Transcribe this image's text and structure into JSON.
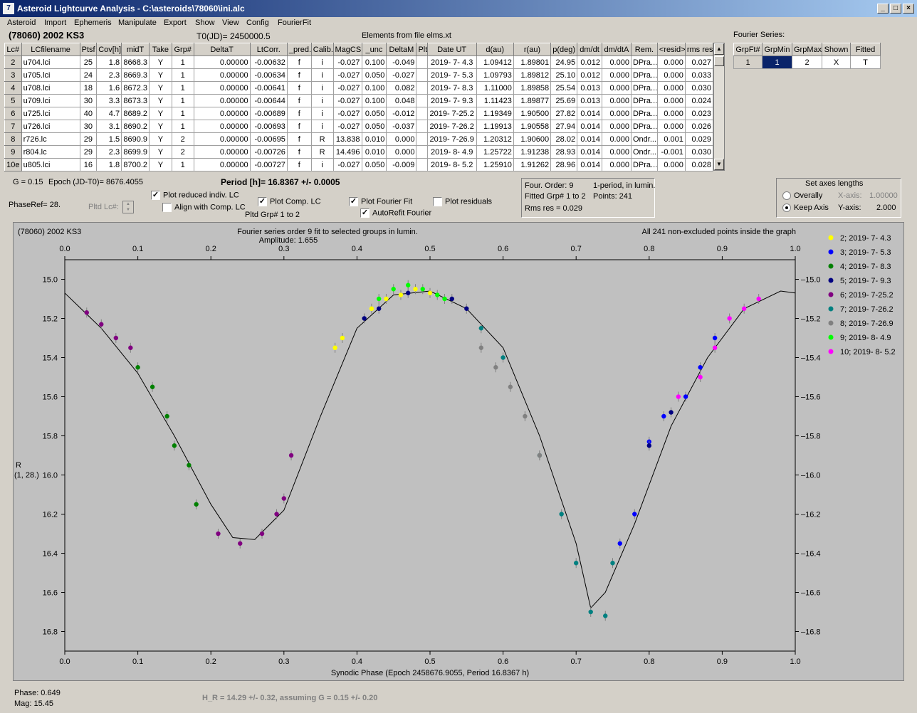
{
  "window": {
    "title": "Asteroid Lightcurve Analysis - C:\\asteroids\\78060\\ini.alc"
  },
  "menu": [
    "Asteroid",
    "Import",
    "Ephemeris",
    "Manipulate",
    "Export",
    "Show",
    "View",
    "Config",
    "FourierFit"
  ],
  "header": {
    "object": "(78060) 2002 KS3",
    "t0": "T0(JD)= 2450000.5",
    "elements": "Elements from file elms.xt"
  },
  "table": {
    "columns": [
      "Lc#",
      "LCfilename",
      "Ptsf",
      "Cov[h]",
      "midT",
      "Take",
      "Grp#",
      "DeltaT",
      "LtCorr.",
      "_pred.",
      "Calib.",
      "MagCS",
      "_unc",
      "DeltaM",
      "Plt",
      "Date UT",
      "d(au)",
      "r(au)",
      "p(deg)",
      "dm/dt",
      "dm/dtA",
      "Rem.",
      "<resid>",
      "rms res"
    ],
    "rows": [
      [
        "2",
        "u704.lci",
        "25",
        "1.8",
        "8668.3",
        "Y",
        "1",
        "0.00000",
        "-0.00632",
        "f",
        "i",
        "-0.027",
        "0.100",
        "-0.049",
        "",
        "2019- 7- 4.3",
        "1.09412",
        "1.89801",
        "24.95",
        "0.012",
        "0.000",
        "DPra...",
        "0.000",
        "0.027"
      ],
      [
        "3",
        "u705.lci",
        "24",
        "2.3",
        "8669.3",
        "Y",
        "1",
        "0.00000",
        "-0.00634",
        "f",
        "i",
        "-0.027",
        "0.050",
        "-0.027",
        "",
        "2019- 7- 5.3",
        "1.09793",
        "1.89812",
        "25.10",
        "0.012",
        "0.000",
        "DPra...",
        "0.000",
        "0.033"
      ],
      [
        "4",
        "u708.lci",
        "18",
        "1.6",
        "8672.3",
        "Y",
        "1",
        "0.00000",
        "-0.00641",
        "f",
        "i",
        "-0.027",
        "0.100",
        "0.082",
        "",
        "2019- 7- 8.3",
        "1.11000",
        "1.89858",
        "25.54",
        "0.013",
        "0.000",
        "DPra...",
        "0.000",
        "0.030"
      ],
      [
        "5",
        "u709.lci",
        "30",
        "3.3",
        "8673.3",
        "Y",
        "1",
        "0.00000",
        "-0.00644",
        "f",
        "i",
        "-0.027",
        "0.100",
        "0.048",
        "",
        "2019- 7- 9.3",
        "1.11423",
        "1.89877",
        "25.69",
        "0.013",
        "0.000",
        "DPra...",
        "0.000",
        "0.024"
      ],
      [
        "6",
        "u725.lci",
        "40",
        "4.7",
        "8689.2",
        "Y",
        "1",
        "0.00000",
        "-0.00689",
        "f",
        "i",
        "-0.027",
        "0.050",
        "-0.012",
        "",
        "2019- 7-25.2",
        "1.19349",
        "1.90500",
        "27.82",
        "0.014",
        "0.000",
        "DPra...",
        "0.000",
        "0.023"
      ],
      [
        "7",
        "u726.lci",
        "30",
        "3.1",
        "8690.2",
        "Y",
        "1",
        "0.00000",
        "-0.00693",
        "f",
        "i",
        "-0.027",
        "0.050",
        "-0.037",
        "",
        "2019- 7-26.2",
        "1.19913",
        "1.90558",
        "27.94",
        "0.014",
        "0.000",
        "DPra...",
        "0.000",
        "0.026"
      ],
      [
        "8",
        "r726.lc",
        "29",
        "1.5",
        "8690.9",
        "Y",
        "2",
        "0.00000",
        "-0.00695",
        "f",
        "R",
        "13.838",
        "0.010",
        "0.000",
        "",
        "2019- 7-26.9",
        "1.20312",
        "1.90600",
        "28.02",
        "0.014",
        "0.000",
        "Ondr...",
        "0.001",
        "0.029"
      ],
      [
        "9",
        "r804.lc",
        "29",
        "2.3",
        "8699.9",
        "Y",
        "2",
        "0.00000",
        "-0.00726",
        "f",
        "R",
        "14.496",
        "0.010",
        "0.000",
        "",
        "2019- 8- 4.9",
        "1.25722",
        "1.91238",
        "28.93",
        "0.014",
        "0.000",
        "Ondr...",
        "-0.001",
        "0.030"
      ],
      [
        "10e",
        "u805.lci",
        "16",
        "1.8",
        "8700.2",
        "Y",
        "1",
        "0.00000",
        "-0.00727",
        "f",
        "i",
        "-0.027",
        "0.050",
        "-0.009",
        "",
        "2019- 8- 5.2",
        "1.25910",
        "1.91262",
        "28.96",
        "0.014",
        "0.000",
        "DPra...",
        "0.000",
        "0.028"
      ]
    ]
  },
  "fourier_table": {
    "title": "Fourier Series:",
    "columns": [
      "GrpFt#",
      "GrpMin",
      "GrpMax",
      "Shown",
      "Fitted"
    ],
    "row": [
      "1",
      "1",
      "2",
      "X",
      "T"
    ]
  },
  "controls": {
    "g": "G = 0.15",
    "epoch": "Epoch (JD-T0)= 8676.4055",
    "period": "Period [h]= 16.8367 +/- 0.0005",
    "phaseref": "PhaseRef= 28.",
    "pltd_lc": "Pltd Lc#:",
    "plot_reduced": "Plot reduced indiv. LC",
    "align": "Align with Comp. LC",
    "plot_comp": "Plot Comp. LC",
    "pltd_grp": "Pltd Grp#  1   to   2",
    "plot_fourier": "Plot Fourier Fit",
    "autorefit": "AutoRefit Fourier",
    "plot_resid": "Plot residuals"
  },
  "fourinfo": {
    "order": "Four. Order:  9",
    "period_type": "1-period, in lumin.",
    "fitted": "Fitted Grp# 1 to 2",
    "points": "Points: 241",
    "rms": "Rms res      = 0.029"
  },
  "axes": {
    "title": "Set axes lengths",
    "overally": "Overally",
    "keep": "Keep Axis",
    "xaxis_label": "X-axis:",
    "xaxis_val": "1.00000",
    "yaxis_label": "Y-axis:",
    "yaxis_val": "2.000"
  },
  "plot": {
    "obj": "(78060) 2002 KS3",
    "fit_desc": "Fourier series order 9 fit to selected groups in lumin.",
    "amplitude": "Amplitude: 1.655",
    "points_note": "All 241 non-excluded points inside the graph",
    "ylabel1": "R",
    "ylabel2": "(1, 28.)",
    "xlabel": "Synodic Phase (Epoch 2458676.9055, Period 16.8367 h)"
  },
  "status": {
    "phase": "Phase:  0.649",
    "mag": "Mag:     15.45",
    "hr": "H_R = 14.29 +/- 0.32, assuming G = 0.15 +/- 0.20"
  },
  "colors": {
    "accent": "#0a246a",
    "plot_bg": "#c0c0c0"
  },
  "chart_data": {
    "type": "scatter",
    "xlim": [
      0,
      1
    ],
    "ylim": [
      16.9,
      14.9
    ],
    "y_inverted": true,
    "xticks": [
      "0.0",
      "0.1",
      "0.2",
      "0.3",
      "0.4",
      "0.5",
      "0.6",
      "0.7",
      "0.8",
      "0.9",
      "1.0"
    ],
    "yticks": [
      "15.0",
      "15.2",
      "15.4",
      "15.6",
      "15.8",
      "16.0",
      "16.2",
      "16.4",
      "16.6",
      "16.8"
    ],
    "legend": [
      {
        "name": "2; 2019- 7- 4.3",
        "color": "#ffff00"
      },
      {
        "name": "3; 2019- 7- 5.3",
        "color": "#0000ff"
      },
      {
        "name": "4; 2019- 7- 8.3",
        "color": "#008000"
      },
      {
        "name": "5; 2019- 7- 9.3",
        "color": "#000080"
      },
      {
        "name": "6; 2019- 7-25.2",
        "color": "#800080"
      },
      {
        "name": "7; 2019- 7-26.2",
        "color": "#008080"
      },
      {
        "name": "8; 2019- 7-26.9",
        "color": "#808080"
      },
      {
        "name": "9; 2019- 8- 4.9",
        "color": "#00ff00"
      },
      {
        "name": "10; 2019- 8- 5.2",
        "color": "#ff00ff"
      }
    ],
    "fit": [
      [
        0,
        15.07
      ],
      [
        0.05,
        15.25
      ],
      [
        0.1,
        15.48
      ],
      [
        0.15,
        15.8
      ],
      [
        0.2,
        16.15
      ],
      [
        0.23,
        16.32
      ],
      [
        0.26,
        16.33
      ],
      [
        0.3,
        16.18
      ],
      [
        0.35,
        15.7
      ],
      [
        0.4,
        15.25
      ],
      [
        0.45,
        15.08
      ],
      [
        0.5,
        15.06
      ],
      [
        0.55,
        15.15
      ],
      [
        0.6,
        15.35
      ],
      [
        0.65,
        15.8
      ],
      [
        0.7,
        16.35
      ],
      [
        0.72,
        16.68
      ],
      [
        0.74,
        16.6
      ],
      [
        0.78,
        16.25
      ],
      [
        0.83,
        15.75
      ],
      [
        0.88,
        15.4
      ],
      [
        0.93,
        15.15
      ],
      [
        0.98,
        15.06
      ],
      [
        1.0,
        15.07
      ]
    ],
    "series": [
      {
        "name": "2; 2019- 7- 4.3",
        "values": [
          [
            0.38,
            15.3
          ],
          [
            0.37,
            15.35
          ],
          [
            0.42,
            15.15
          ],
          [
            0.44,
            15.1
          ],
          [
            0.46,
            15.08
          ],
          [
            0.48,
            15.05
          ],
          [
            0.5,
            15.07
          ]
        ]
      },
      {
        "name": "3; 2019- 7- 5.3",
        "values": [
          [
            0.8,
            15.83
          ],
          [
            0.82,
            15.7
          ],
          [
            0.85,
            15.6
          ],
          [
            0.87,
            15.45
          ],
          [
            0.89,
            15.3
          ],
          [
            0.78,
            16.2
          ],
          [
            0.76,
            16.35
          ]
        ]
      },
      {
        "name": "4; 2019- 7- 8.3",
        "values": [
          [
            0.1,
            15.45
          ],
          [
            0.12,
            15.55
          ],
          [
            0.14,
            15.7
          ],
          [
            0.15,
            15.85
          ],
          [
            0.17,
            15.95
          ],
          [
            0.18,
            16.15
          ]
        ]
      },
      {
        "name": "5; 2019- 7- 9.3",
        "values": [
          [
            0.41,
            15.2
          ],
          [
            0.43,
            15.15
          ],
          [
            0.47,
            15.07
          ],
          [
            0.53,
            15.1
          ],
          [
            0.55,
            15.15
          ],
          [
            0.8,
            15.85
          ],
          [
            0.83,
            15.68
          ]
        ]
      },
      {
        "name": "6; 2019- 7-25.2",
        "values": [
          [
            0.03,
            15.17
          ],
          [
            0.05,
            15.23
          ],
          [
            0.07,
            15.3
          ],
          [
            0.09,
            15.35
          ],
          [
            0.21,
            16.3
          ],
          [
            0.24,
            16.35
          ],
          [
            0.27,
            16.3
          ],
          [
            0.29,
            16.2
          ],
          [
            0.3,
            16.12
          ],
          [
            0.31,
            15.9
          ]
        ]
      },
      {
        "name": "7; 2019- 7-26.2",
        "values": [
          [
            0.57,
            15.25
          ],
          [
            0.6,
            15.4
          ],
          [
            0.65,
            15.9
          ],
          [
            0.68,
            16.2
          ],
          [
            0.7,
            16.45
          ],
          [
            0.72,
            16.7
          ],
          [
            0.74,
            16.72
          ],
          [
            0.75,
            16.45
          ]
        ]
      },
      {
        "name": "8; 2019- 7-26.9",
        "values": [
          [
            0.57,
            15.35
          ],
          [
            0.59,
            15.45
          ],
          [
            0.61,
            15.55
          ],
          [
            0.63,
            15.7
          ],
          [
            0.65,
            15.9
          ]
        ]
      },
      {
        "name": "9; 2019- 8- 4.9",
        "values": [
          [
            0.43,
            15.1
          ],
          [
            0.45,
            15.05
          ],
          [
            0.47,
            15.03
          ],
          [
            0.49,
            15.05
          ],
          [
            0.51,
            15.08
          ],
          [
            0.52,
            15.1
          ]
        ]
      },
      {
        "name": "10; 2019- 8- 5.2",
        "values": [
          [
            0.84,
            15.6
          ],
          [
            0.87,
            15.5
          ],
          [
            0.89,
            15.35
          ],
          [
            0.91,
            15.2
          ],
          [
            0.93,
            15.15
          ],
          [
            0.95,
            15.1
          ]
        ]
      }
    ]
  }
}
